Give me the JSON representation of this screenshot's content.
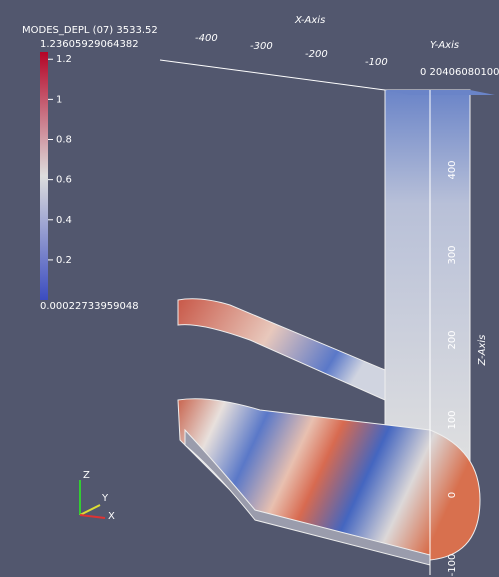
{
  "colorbar": {
    "title": "MODES_DEPL (07) 3533.52",
    "max": 1.23605929064382,
    "min": 0.00022733959048,
    "ticks": [
      1.2,
      1,
      0.8,
      0.6,
      0.4,
      0.2
    ]
  },
  "axes": {
    "x_label": "X-Axis",
    "y_label": "Y-Axis",
    "z_label": "Z-Axis",
    "x_ticks": [
      "-400",
      "-300",
      "-200",
      "-100"
    ],
    "y_ticks": "0 20406080100",
    "z_ticks": [
      "400",
      "300",
      "200",
      "100",
      "0",
      "-100"
    ]
  },
  "orientation": {
    "z": "Z",
    "y": "Y",
    "x": "X"
  }
}
